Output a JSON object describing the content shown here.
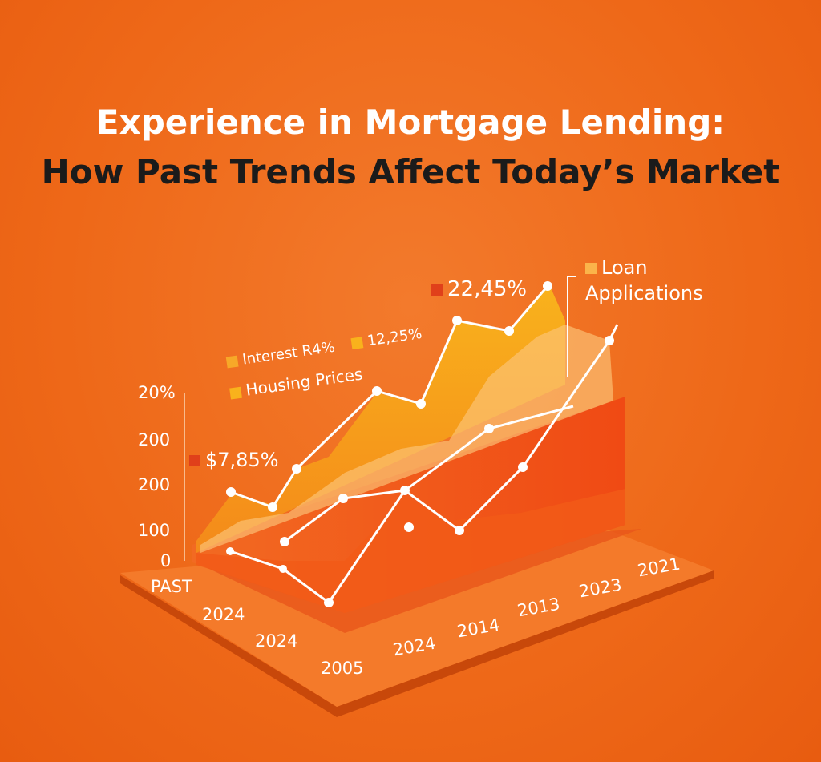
{
  "header": {
    "title_line1": "Experience in Mortgage Lending:",
    "title_line2": "How Past Trends Affect Today’s Market"
  },
  "axis": {
    "y_labels": [
      "20%",
      "200",
      "200",
      "100",
      "0"
    ],
    "x_labels_front": [
      "PAST",
      "2024",
      "2024",
      "2005"
    ],
    "x_labels_side": [
      "2024",
      "2014",
      "2013",
      "2023",
      "2021"
    ]
  },
  "callouts": [
    "$7,85%",
    "22,45%"
  ],
  "legend": [
    "Interest R4%",
    "12,25%",
    "Housing Prices",
    "Loan Applications"
  ]
}
